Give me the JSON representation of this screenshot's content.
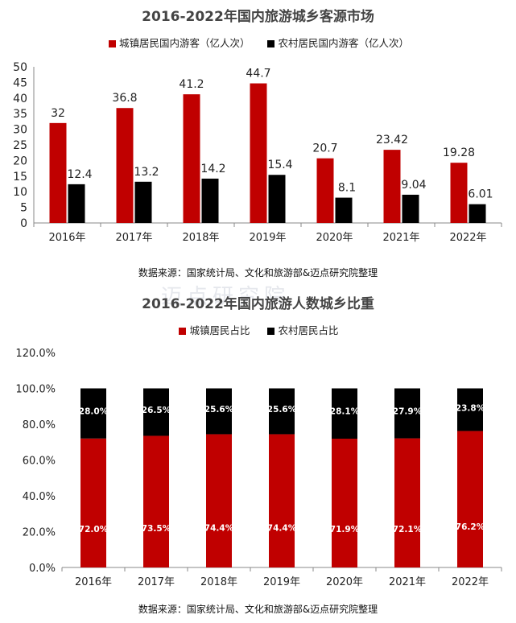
{
  "chart_data": [
    {
      "type": "bar",
      "title": "2016-2022年国内旅游城乡客源市场",
      "categories": [
        "2016年",
        "2017年",
        "2018年",
        "2019年",
        "2020年",
        "2021年",
        "2022年"
      ],
      "series": [
        {
          "name": "城镇居民国内游客（亿人次）",
          "values": [
            32,
            36.8,
            41.2,
            44.7,
            20.7,
            23.42,
            19.28
          ],
          "labels": [
            "32",
            "36.8",
            "41.2",
            "44.7",
            "20.7",
            "23.42",
            "19.28"
          ],
          "color": "#C00000"
        },
        {
          "name": "农村居民国内游客（亿人次）",
          "values": [
            12.4,
            13.2,
            14.2,
            15.4,
            8.1,
            9.04,
            6.01
          ],
          "labels": [
            "12.4",
            "13.2",
            "14.2",
            "15.4",
            "8.1",
            "9.04",
            "6.01"
          ],
          "color": "#000000"
        }
      ],
      "ylim": [
        0,
        50
      ],
      "yticks": [
        "0",
        "5",
        "10",
        "15",
        "20",
        "25",
        "30",
        "35",
        "40",
        "45",
        "50"
      ],
      "grid": false,
      "legend": "top",
      "source": "数据来源：国家统计局、文化和旅游部&迈点研究院整理"
    },
    {
      "type": "bar",
      "stacked": true,
      "title": "2016-2022年国内旅游人数城乡比重",
      "categories": [
        "2016年",
        "2017年",
        "2018年",
        "2019年",
        "2020年",
        "2021年",
        "2022年"
      ],
      "series": [
        {
          "name": "城镇居民占比",
          "values": [
            72.0,
            73.5,
            74.4,
            74.4,
            71.9,
            72.1,
            76.2
          ],
          "labels": [
            "72.0%",
            "73.5%",
            "74.4%",
            "74.4%",
            "71.9%",
            "72.1%",
            "76.2%"
          ],
          "color": "#C00000"
        },
        {
          "name": "农村居民占比",
          "values": [
            28.0,
            26.5,
            25.6,
            25.6,
            28.1,
            27.9,
            23.8
          ],
          "labels": [
            "28.0%",
            "26.5%",
            "25.6%",
            "25.6%",
            "28.1%",
            "27.9%",
            "23.8%"
          ],
          "color": "#000000"
        }
      ],
      "ylim": [
        0,
        120
      ],
      "yticks": [
        "0.0%",
        "20.0%",
        "40.0%",
        "60.0%",
        "80.0%",
        "100.0%",
        "120.0%"
      ],
      "grid": false,
      "legend": "top",
      "source": "数据来源：国家统计局、文化和旅游部&迈点研究院整理"
    }
  ],
  "watermark": "迈点研究院"
}
